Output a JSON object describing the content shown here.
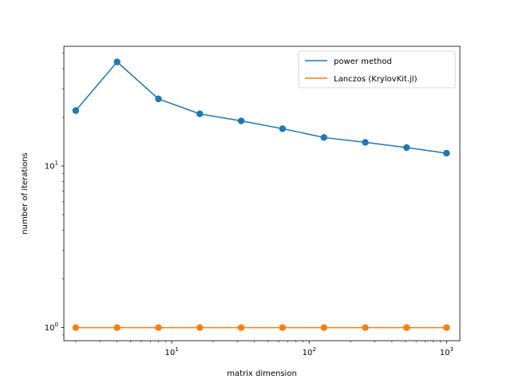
{
  "chart_data": {
    "type": "line",
    "title": "",
    "xlabel": "matrix dimension",
    "ylabel": "number of iterations",
    "xscale": "log",
    "yscale": "log",
    "xlim": [
      1.64,
      1250
    ],
    "ylim": [
      0.83,
      55
    ],
    "grid": false,
    "legend_position": "top-right",
    "x_tick_labels": [
      {
        "value": 10,
        "base": "10",
        "exp": "1"
      },
      {
        "value": 100,
        "base": "10",
        "exp": "2"
      },
      {
        "value": 1000,
        "base": "10",
        "exp": "3"
      }
    ],
    "y_tick_labels": [
      {
        "value": 1,
        "base": "10",
        "exp": "0"
      },
      {
        "value": 10,
        "base": "10",
        "exp": "1"
      }
    ],
    "x": [
      2,
      4,
      8,
      16,
      32,
      64,
      128,
      256,
      512,
      1000
    ],
    "series": [
      {
        "name": "power method",
        "color": "#1f77b4",
        "values": [
          22,
          44,
          26,
          21,
          19,
          17,
          15,
          14,
          13,
          12
        ]
      },
      {
        "name": "Lanczos (KrylovKit.jl)",
        "color": "#ff7f0e",
        "values": [
          1,
          1,
          1,
          1,
          1,
          1,
          1,
          1,
          1,
          1
        ]
      }
    ]
  }
}
